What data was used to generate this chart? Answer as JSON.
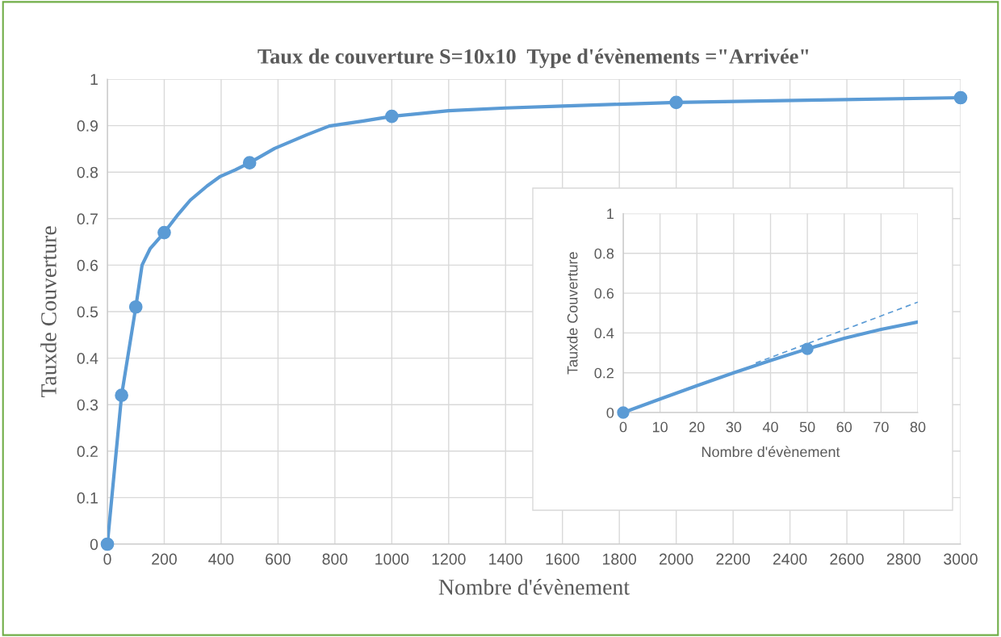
{
  "chart_data": [
    {
      "type": "line",
      "title": "Taux de couverture S=10x10  Type d'évènements =\"Arrivée\"",
      "xlabel": "Nombre d'évènement",
      "ylabel": "Tauxde Couverture",
      "xlim": [
        0,
        3000
      ],
      "xticks": [
        0,
        200,
        400,
        600,
        800,
        1000,
        1200,
        1400,
        1600,
        1800,
        2000,
        2200,
        2400,
        2600,
        2800,
        3000
      ],
      "ylim": [
        0,
        1
      ],
      "yticks": [
        0,
        0.1,
        0.2,
        0.3,
        0.4,
        0.5,
        0.6,
        0.7,
        0.8,
        0.9,
        1
      ],
      "grid": true,
      "series": [
        {
          "color": "#5b9bd5",
          "marker": "none",
          "line_style": "solid",
          "x": [
            0,
            50,
            100,
            122,
            150,
            200,
            250,
            292,
            350,
            395,
            450,
            500,
            588,
            700,
            780,
            900,
            1000,
            1200,
            1400,
            1600,
            1800,
            2000,
            2500,
            3000
          ],
          "values": [
            0,
            0.32,
            0.51,
            0.6,
            0.635,
            0.67,
            0.71,
            0.74,
            0.77,
            0.79,
            0.805,
            0.82,
            0.851,
            0.88,
            0.899,
            0.91,
            0.92,
            0.932,
            0.938,
            0.942,
            0.946,
            0.95,
            0.955,
            0.96
          ]
        },
        {
          "type": "scatter",
          "color": "#5b9bd5",
          "marker": "circle",
          "x": [
            0,
            50,
            100,
            200,
            500,
            1000,
            2000,
            3000
          ],
          "values": [
            0,
            0.32,
            0.51,
            0.67,
            0.82,
            0.92,
            0.95,
            0.96
          ]
        }
      ]
    },
    {
      "type": "line",
      "xlabel": "Nombre d'évènement",
      "ylabel": "Tauxde Couverture",
      "xlim": [
        0,
        80
      ],
      "xticks": [
        0,
        10,
        20,
        30,
        40,
        50,
        60,
        70,
        80
      ],
      "ylim": [
        0,
        1
      ],
      "yticks": [
        0,
        0.2,
        0.4,
        0.6,
        0.8,
        1
      ],
      "grid": true,
      "series": [
        {
          "color": "#5b9bd5",
          "marker": "none",
          "line_style": "solid",
          "x": [
            0,
            10,
            20,
            30,
            40,
            50,
            60,
            70,
            80
          ],
          "values": [
            0,
            0.068,
            0.135,
            0.2,
            0.262,
            0.32,
            0.373,
            0.418,
            0.455
          ]
        },
        {
          "type": "scatter",
          "color": "#5b9bd5",
          "marker": "circle",
          "x": [
            0,
            50
          ],
          "values": [
            0,
            0.32
          ]
        },
        {
          "color": "#5b9bd5",
          "marker": "none",
          "line_style": "dashed",
          "x": [
            36,
            80
          ],
          "values": [
            0.249,
            0.555
          ]
        }
      ]
    }
  ]
}
